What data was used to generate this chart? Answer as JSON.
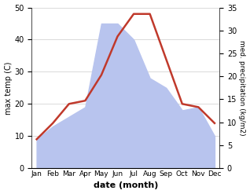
{
  "months": [
    "Jan",
    "Feb",
    "Mar",
    "Apr",
    "May",
    "Jun",
    "Jul",
    "Aug",
    "Sep",
    "Oct",
    "Nov",
    "Dec"
  ],
  "temperature": [
    9,
    14,
    20,
    21,
    29,
    41,
    48,
    48,
    34,
    20,
    19,
    14
  ],
  "precipitation_left": [
    9,
    13,
    16,
    19,
    45,
    45,
    40,
    28,
    25,
    18,
    19,
    10
  ],
  "temp_color": "#c0392b",
  "precip_color": "#b8c4ee",
  "left_ylim": [
    0,
    50
  ],
  "right_ylim": [
    0,
    35
  ],
  "left_yticks": [
    0,
    10,
    20,
    30,
    40,
    50
  ],
  "right_yticks": [
    0,
    5,
    10,
    15,
    20,
    25,
    30,
    35
  ],
  "xlabel": "date (month)",
  "ylabel_left": "max temp (C)",
  "ylabel_right": "med. precipitation (kg/m2)",
  "bg_color": "#ffffff",
  "grid_color": "#cccccc",
  "line_width": 1.8,
  "scale_factor": 1.4286
}
